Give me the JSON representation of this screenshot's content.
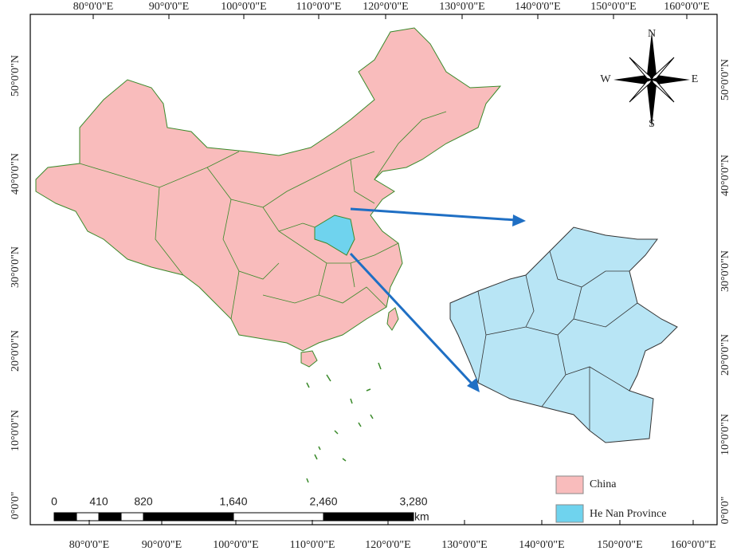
{
  "map": {
    "top_labels": [
      "80°0'0\"E",
      "90°0'0\"E",
      "100°0'0\"E",
      "110°0'0\"E",
      "120°0'0\"E",
      "130°0'0\"E",
      "140°0'0\"E",
      "150°0'0\"E",
      "160°0'0\"E"
    ],
    "bottom_labels": [
      "80°0'0\"E",
      "90°0'0\"E",
      "100°0'0\"E",
      "110°0'0\"E",
      "120°0'0\"E",
      "130°0'0\"E",
      "140°0'0\"E",
      "150°0'0\"E",
      "160°0'0\"E"
    ],
    "left_labels": [
      "50°0'0\"N",
      "40°0'0\"N",
      "30°0'0\"N",
      "20°0'0\"N",
      "10°0'0\"N",
      "0°0'0\""
    ],
    "right_labels": [
      "50°0'0\"N",
      "40°0'0\"N",
      "30°0'0\"N",
      "20°0'0\"N",
      "10°0'0\"N",
      "0°0'0\""
    ],
    "compass": {
      "n": "N",
      "s": "S",
      "e": "E",
      "w": "W"
    },
    "scale_bar": {
      "labels": [
        "0",
        "410",
        "820",
        "1,640",
        "2,460",
        "3,280"
      ],
      "unit": "km"
    },
    "legend": [
      "China",
      "He Nan Province"
    ]
  }
}
